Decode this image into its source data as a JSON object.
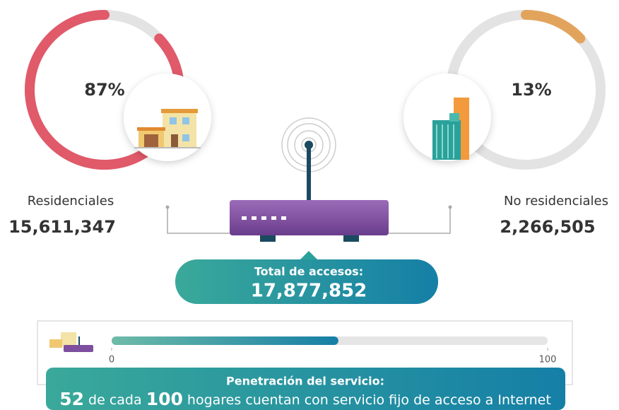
{
  "residential": {
    "percent": {
      "value": 87,
      "label": "87%"
    },
    "label": "Residenciales",
    "count": "15,611,347"
  },
  "non_residential": {
    "percent": {
      "value": 13,
      "label": "13%"
    },
    "label": "No residenciales",
    "count": "2,266,505"
  },
  "total": {
    "label": "Total de accesos:",
    "count": "17,877,852"
  },
  "penetration": {
    "title": "Penetración del servicio:",
    "value": 52,
    "min": 0,
    "max": 100,
    "text_middle": "de cada",
    "text_end": "hogares cuentan con servicio fijo de acceso a Internet"
  }
}
